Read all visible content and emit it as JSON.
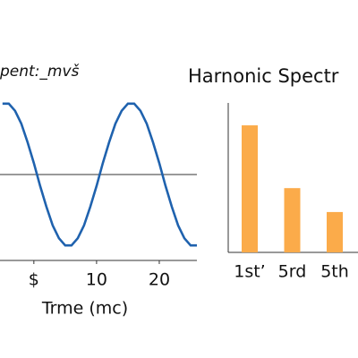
{
  "chart_data": [
    {
      "type": "line",
      "title": "pent:_mvš",
      "xlabel": "Trme (mc)",
      "x": [
        -5,
        -4,
        -3,
        -2,
        -1,
        0,
        1,
        2,
        3,
        4,
        5,
        6,
        7,
        8,
        9,
        10,
        11,
        12,
        13,
        14,
        15,
        16,
        17,
        18,
        19,
        20,
        21,
        22,
        23,
        24,
        25,
        26
      ],
      "series": [
        {
          "color": "#1f62ae",
          "values": [
            0.99,
            0.99,
            0.89,
            0.71,
            0.45,
            0.16,
            -0.16,
            -0.45,
            -0.71,
            -0.89,
            -0.99,
            -0.99,
            -0.89,
            -0.71,
            -0.45,
            -0.16,
            0.16,
            0.45,
            0.71,
            0.89,
            0.99,
            0.99,
            0.89,
            0.71,
            0.45,
            0.16,
            -0.16,
            -0.45,
            -0.71,
            -0.89,
            -0.99,
            -0.99
          ]
        }
      ],
      "xlim": [
        -5.4,
        26
      ],
      "xticks": [
        {
          "value": 0,
          "label": "$"
        },
        10,
        20
      ],
      "ylim": [
        -1.2,
        1.05
      ],
      "zero_line": true
    },
    {
      "type": "bar",
      "title": "Harnonic Spectr",
      "categories": [
        "1st’",
        "5rd",
        "5th"
      ],
      "values": [
        0.85,
        0.43,
        0.27
      ],
      "color": "#fbab4a",
      "ylim": [
        0,
        1
      ]
    }
  ]
}
